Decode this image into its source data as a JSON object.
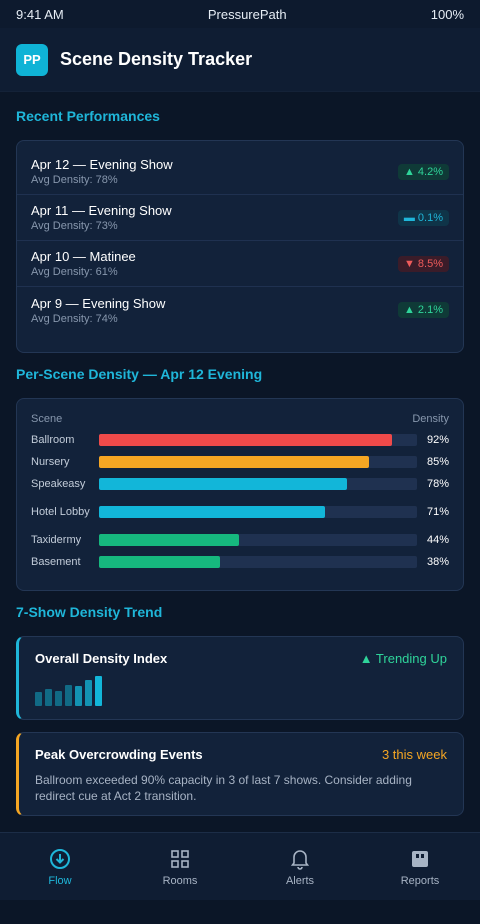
{
  "status": {
    "time": "9:41 AM",
    "carrier": "PressurePath",
    "battery": "100%"
  },
  "header": {
    "logo": "PP",
    "title": "Scene Density Tracker"
  },
  "recent": {
    "title": "Recent Performances",
    "items": [
      {
        "title": "Apr 12 — Evening Show",
        "sub": "Avg Density: 78%",
        "badge": "▲ 4.2%",
        "trend": "up"
      },
      {
        "title": "Apr 11 — Evening Show",
        "sub": "Avg Density: 73%",
        "badge": "▬ 0.1%",
        "trend": "flat"
      },
      {
        "title": "Apr 10 — Matinee",
        "sub": "Avg Density: 61%",
        "badge": "▼ 8.5%",
        "trend": "down"
      },
      {
        "title": "Apr 9 — Evening Show",
        "sub": "Avg Density: 74%",
        "badge": "▲ 2.1%",
        "trend": "up"
      }
    ]
  },
  "scenes": {
    "title": "Per-Scene Density — Apr 12 Evening",
    "col_scene": "Scene",
    "col_density": "Density",
    "rows": [
      {
        "name": "Ballroom",
        "value": 92,
        "label": "92%",
        "color": "#ef4a4a"
      },
      {
        "name": "Nursery",
        "value": 85,
        "label": "85%",
        "color": "#f5a623"
      },
      {
        "name": "Speakeasy",
        "value": 78,
        "label": "78%",
        "color": "#12b6d9"
      },
      {
        "name": "Hotel Lobby",
        "value": 71,
        "label": "71%",
        "color": "#12b6d9"
      },
      {
        "name": "Taxidermy",
        "value": 44,
        "label": "44%",
        "color": "#16b87e"
      },
      {
        "name": "Basement",
        "value": 38,
        "label": "38%",
        "color": "#16b87e"
      }
    ]
  },
  "trend": {
    "title": "7-Show Density Trend",
    "index_card": {
      "title": "Overall Density Index",
      "status": "▲ Trending Up",
      "status_color": "#2fd49a",
      "spark": [
        0.45,
        0.55,
        0.5,
        0.7,
        0.65,
        0.85,
        1.0
      ]
    },
    "events_card": {
      "title": "Peak Overcrowding Events",
      "status": "3 this week",
      "status_color": "#f5a623",
      "desc": "Ballroom exceeded 90% capacity in 3 of last 7 shows. Consider adding redirect cue at Act 2 transition."
    }
  },
  "nav": [
    {
      "label": "Flow",
      "icon": "flow-icon",
      "active": true
    },
    {
      "label": "Rooms",
      "icon": "grid-icon",
      "active": false
    },
    {
      "label": "Alerts",
      "icon": "bell-icon",
      "active": false
    },
    {
      "label": "Reports",
      "icon": "report-icon",
      "active": false
    }
  ]
}
